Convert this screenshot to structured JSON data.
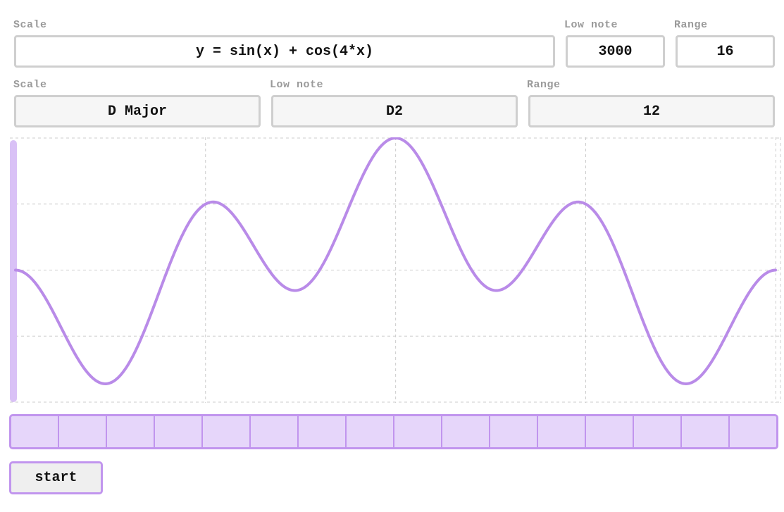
{
  "row1": {
    "formula_label": "Scale",
    "formula_value": "y = sin(x) + cos(4*x)",
    "low_note_label": "Low note",
    "low_note_value": "3000",
    "range_label": "Range",
    "range_value": "16"
  },
  "row2": {
    "scale_label": "Scale",
    "scale_value": "D Major",
    "low_note_label": "Low note",
    "low_note_value": "D2",
    "range_label": "Range",
    "range_value": "12"
  },
  "plot": {
    "function": "sin(x) + cos(4*x)",
    "x_range": [
      -1.57,
      4.71
    ],
    "y_range": [
      -2,
      2
    ],
    "grid": true,
    "line_color": "#b98be8",
    "cursor_color": "#d9c1f6"
  },
  "keyboard": {
    "key_count": 16,
    "fill_color": "#e6d6fa",
    "border_color": "#c195ee"
  },
  "controls": {
    "start_label": "start"
  }
}
